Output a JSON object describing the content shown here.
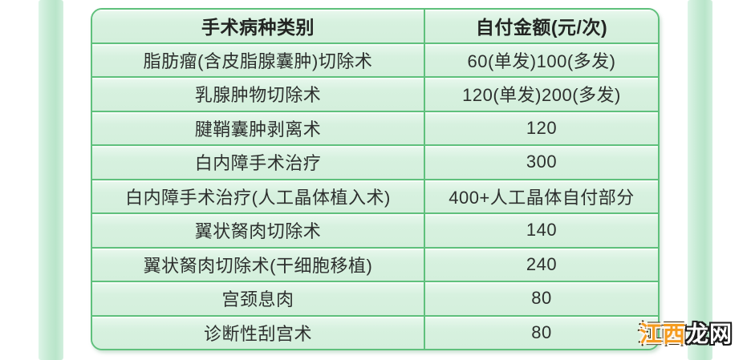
{
  "colors": {
    "page_background": "#ffffff",
    "table_border_green": "#5fc07c",
    "cell_background_green": "#d7f1df",
    "side_strip_green": "#c2e9d1",
    "text_color": "#2d2f2e",
    "watermark_orange": "#f59b1e",
    "watermark_white": "#ffffff"
  },
  "chart_data": {
    "type": "table",
    "columns": [
      "手术病种类别",
      "自付金额(元/次)"
    ],
    "rows": [
      {
        "category": "脂肪瘤(含皮脂腺囊肿)切除术",
        "amount": "60(单发)100(多发)"
      },
      {
        "category": "乳腺肿物切除术",
        "amount": "120(单发)200(多发)"
      },
      {
        "category": "腱鞘囊肿剥离术",
        "amount": "120"
      },
      {
        "category": "白内障手术治疗",
        "amount": "300"
      },
      {
        "category": "白内障手术治疗(人工晶体植入术)",
        "amount": "400+人工晶体自付部分"
      },
      {
        "category": "翼状胬肉切除术",
        "amount": "140"
      },
      {
        "category": "翼状胬肉切除术(干细胞移植)",
        "amount": "240"
      },
      {
        "category": "宫颈息肉",
        "amount": "80"
      },
      {
        "category": "诊断性刮宫术",
        "amount": "80"
      }
    ],
    "layout": {
      "header_bold": true,
      "grid": true,
      "column_count": 2
    }
  },
  "watermark": {
    "full_text": "江西龙网",
    "part_orange": "江西",
    "part_white": "龙网"
  }
}
